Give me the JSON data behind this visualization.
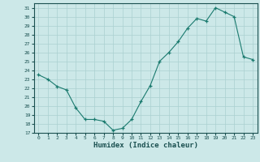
{
  "x": [
    0,
    1,
    2,
    3,
    4,
    5,
    6,
    7,
    8,
    9,
    10,
    11,
    12,
    13,
    14,
    15,
    16,
    17,
    18,
    19,
    20,
    21,
    22,
    23
  ],
  "y": [
    23.5,
    23.0,
    22.2,
    21.8,
    19.8,
    18.5,
    18.5,
    18.3,
    17.3,
    17.5,
    18.5,
    20.5,
    22.3,
    25.0,
    26.0,
    27.2,
    28.7,
    29.8,
    29.5,
    31.0,
    30.5,
    30.0,
    25.5,
    25.2
  ],
  "line_color": "#1a7a6e",
  "marker": "+",
  "bg_color": "#cce8e8",
  "grid_color": "#aad0d0",
  "tick_color": "#1a5050",
  "xlabel": "Humidex (Indice chaleur)",
  "ylim": [
    17,
    31.5
  ],
  "yticks": [
    17,
    18,
    19,
    20,
    21,
    22,
    23,
    24,
    25,
    26,
    27,
    28,
    29,
    30,
    31
  ],
  "xticks": [
    0,
    1,
    2,
    3,
    4,
    5,
    6,
    7,
    8,
    9,
    10,
    11,
    12,
    13,
    14,
    15,
    16,
    17,
    18,
    19,
    20,
    21,
    22,
    23
  ]
}
